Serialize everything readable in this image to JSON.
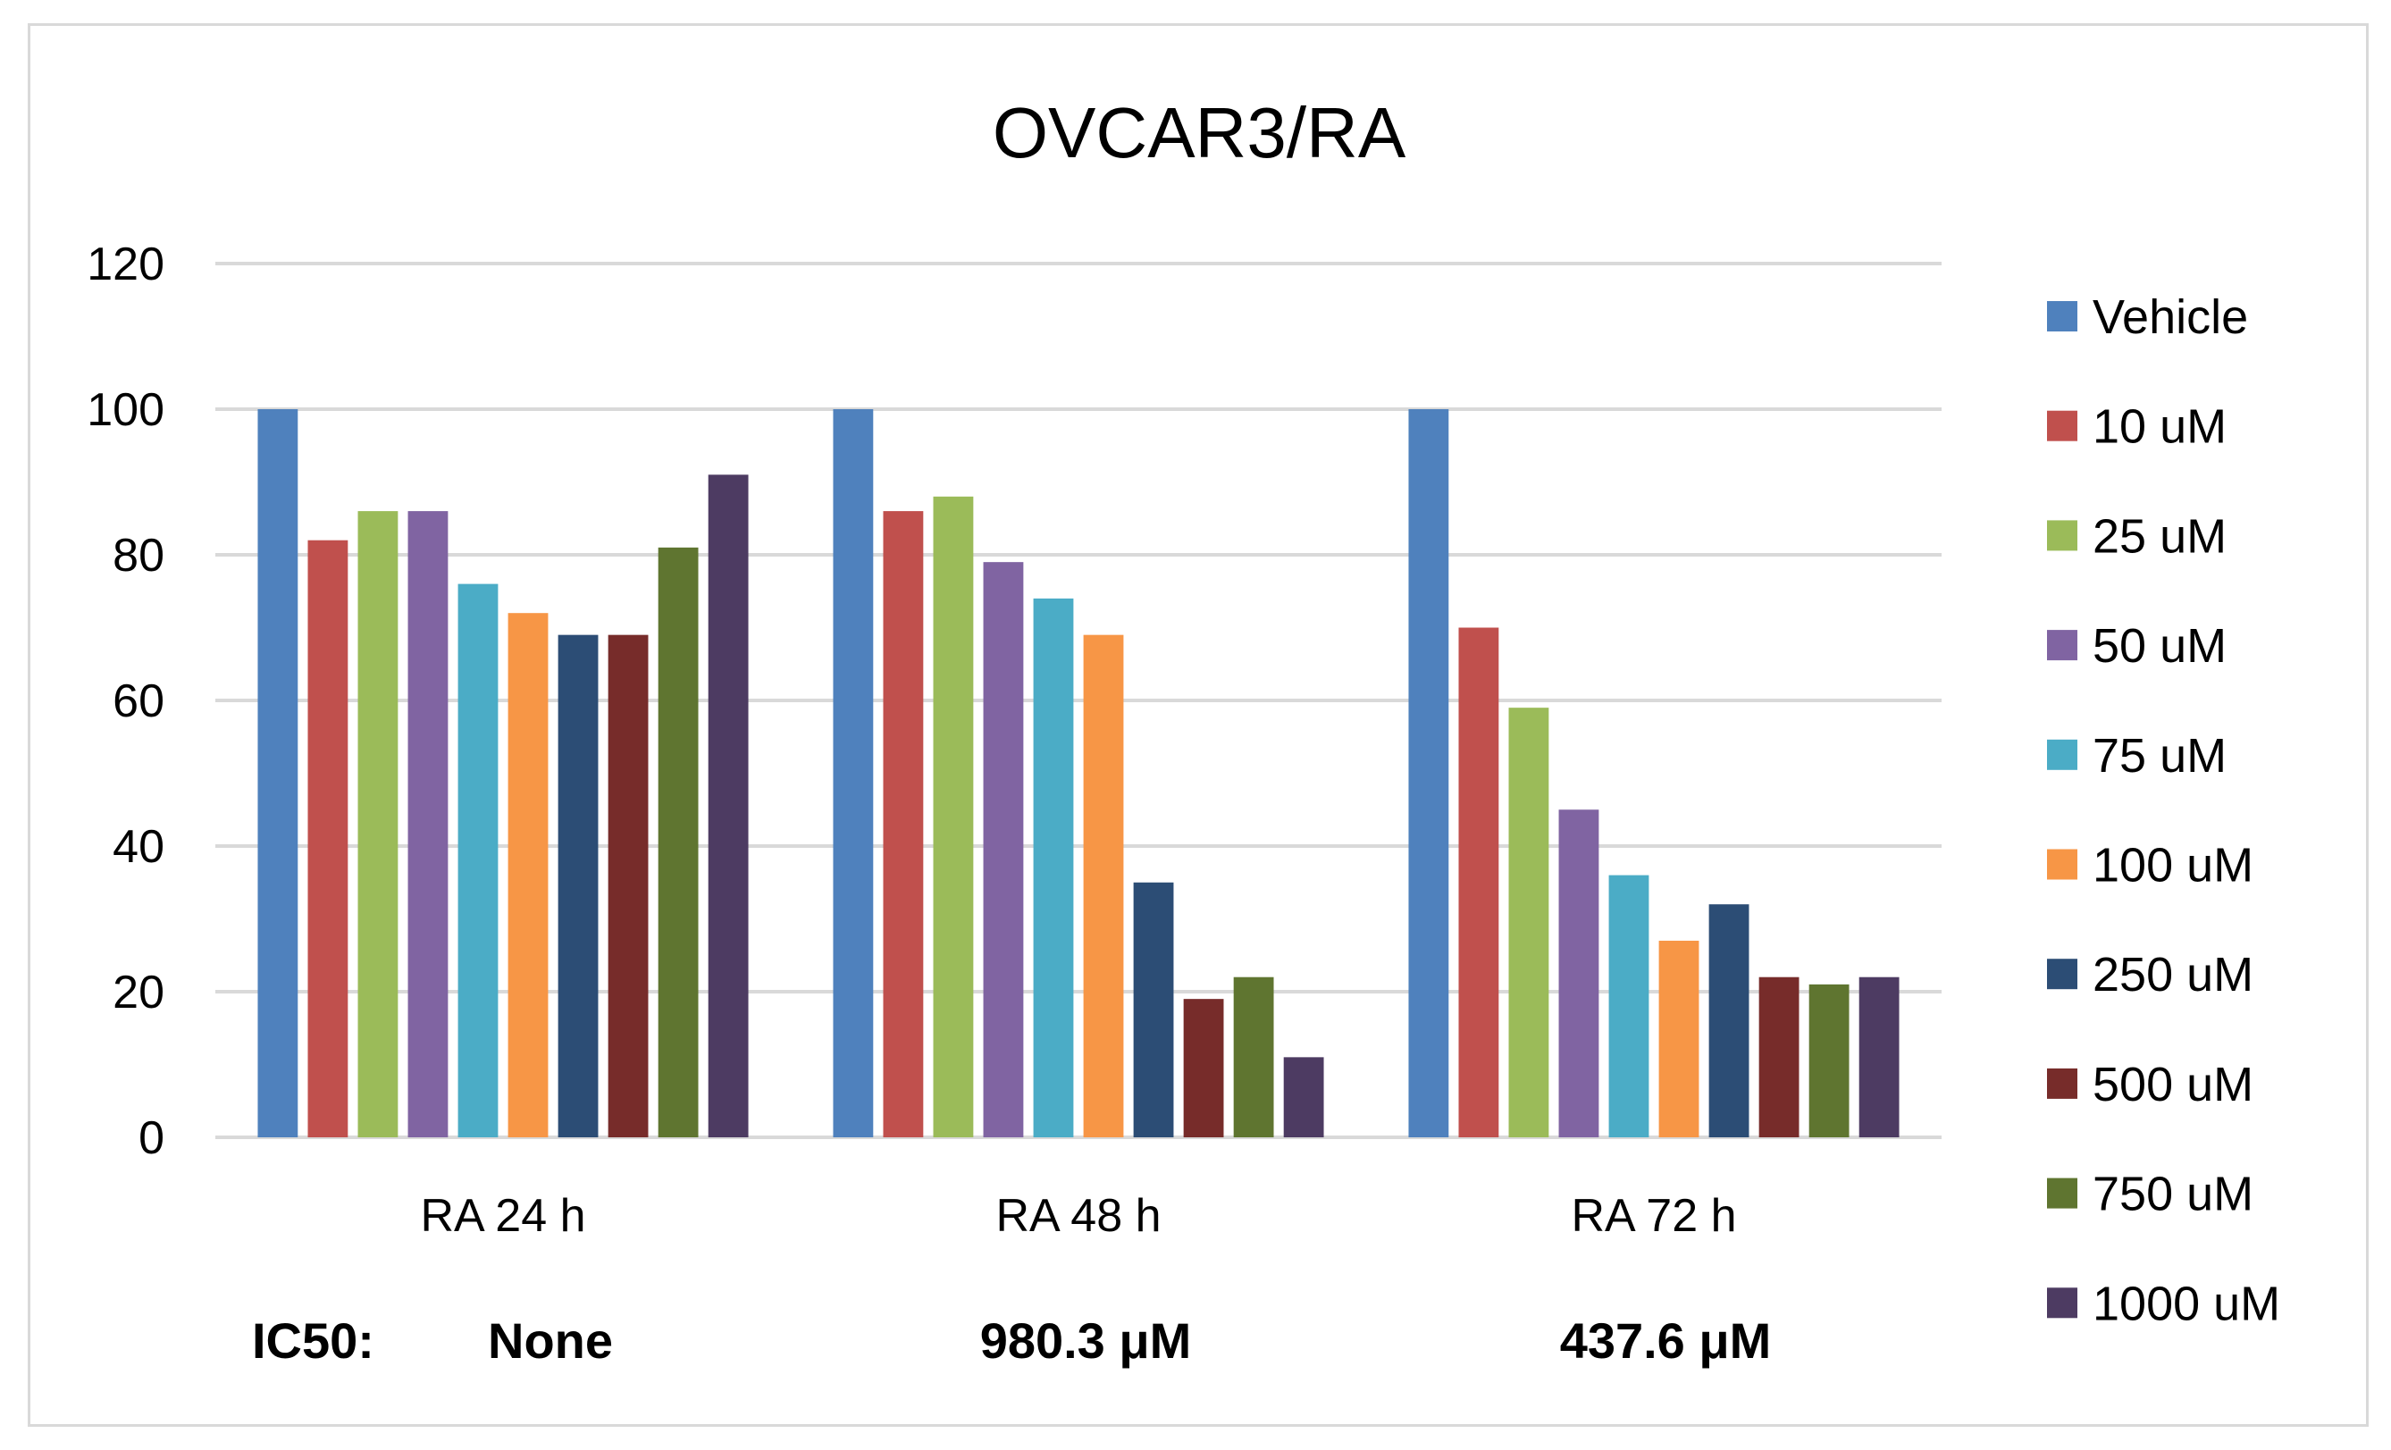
{
  "chart_data": {
    "type": "bar",
    "title": "OVCAR3/RA",
    "xlabel": "",
    "ylabel": "",
    "ylim": [
      0,
      120
    ],
    "yticks": [
      0,
      20,
      40,
      60,
      80,
      100,
      120
    ],
    "grid": true,
    "legend_position": "right",
    "categories": [
      "RA 24 h",
      "RA 48 h",
      "RA 72 h"
    ],
    "series": [
      {
        "name": "Vehicle",
        "color": "#4f81bd",
        "values": [
          100,
          100,
          100
        ]
      },
      {
        "name": "10 uM",
        "color": "#c0504d",
        "values": [
          82,
          86,
          70
        ]
      },
      {
        "name": "25 uM",
        "color": "#9bbb59",
        "values": [
          86,
          88,
          59
        ]
      },
      {
        "name": "50 uM",
        "color": "#8064a2",
        "values": [
          86,
          79,
          45
        ]
      },
      {
        "name": "75 uM",
        "color": "#4bacc6",
        "values": [
          76,
          74,
          36
        ]
      },
      {
        "name": "100 uM",
        "color": "#f79646",
        "values": [
          72,
          69,
          27
        ]
      },
      {
        "name": "250 uM",
        "color": "#2c4d75",
        "values": [
          69,
          35,
          32
        ]
      },
      {
        "name": "500 uM",
        "color": "#772c2a",
        "values": [
          69,
          19,
          22
        ]
      },
      {
        "name": "750 uM",
        "color": "#5f7530",
        "values": [
          81,
          22,
          21
        ]
      },
      {
        "name": "1000 uM",
        "color": "#4d3b62",
        "values": [
          91,
          11,
          22
        ]
      }
    ],
    "annotations": {
      "ic50_label": "IC50:",
      "ic50_values": [
        "None",
        "980.3 μM",
        "437.6 μM"
      ]
    }
  }
}
